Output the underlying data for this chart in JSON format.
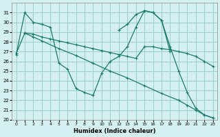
{
  "background_color": "#d4f0f0",
  "grid_color": "#a0d0d0",
  "line_color": "#1a7a6a",
  "xlabel": "Humidex (Indice chaleur)",
  "xlim": [
    -0.5,
    23.5
  ],
  "ylim": [
    20,
    32
  ],
  "yticks": [
    20,
    21,
    22,
    23,
    24,
    25,
    26,
    27,
    28,
    29,
    30,
    31
  ],
  "xticks": [
    0,
    1,
    2,
    3,
    4,
    5,
    6,
    7,
    8,
    9,
    10,
    11,
    12,
    13,
    14,
    15,
    16,
    17,
    18,
    19,
    20,
    21,
    22,
    23
  ],
  "lines": [
    {
      "x": [
        0,
        1,
        2,
        3,
        4,
        5,
        6,
        7,
        8,
        9,
        10,
        11,
        12,
        13,
        14,
        15,
        16,
        17,
        18,
        19,
        20,
        21,
        22,
        23
      ],
      "y": [
        26.7,
        31.0,
        30.0,
        29.8,
        29.5,
        25.8,
        25.2,
        23.2,
        22.8,
        22.5,
        24.8,
        26.0,
        26.5,
        27.5,
        29.5,
        31.2,
        31.0,
        30.2,
        27.5,
        25.0,
        22.8,
        21.2,
        20.5,
        20.2
      ]
    },
    {
      "x": [
        0,
        1,
        2,
        3,
        4,
        5,
        6,
        7,
        8,
        9,
        10,
        11,
        12,
        13,
        14,
        15,
        16,
        17,
        18,
        19,
        20,
        21,
        22,
        23
      ],
      "y": [
        26.8,
        28.9,
        28.8,
        28.5,
        28.3,
        28.1,
        27.9,
        27.7,
        27.5,
        27.3,
        27.1,
        26.9,
        26.7,
        26.5,
        26.3,
        27.5,
        27.5,
        27.3,
        27.2,
        27.0,
        26.8,
        26.5,
        26.0,
        25.5
      ]
    },
    {
      "x": [
        1,
        2,
        3,
        5,
        7,
        9,
        11,
        13,
        15,
        17,
        19,
        20,
        21,
        22,
        23
      ],
      "y": [
        28.9,
        28.5,
        28.1,
        27.3,
        26.6,
        25.8,
        25.0,
        24.3,
        23.5,
        22.7,
        22.0,
        21.5,
        21.0,
        20.5,
        20.2
      ]
    },
    {
      "x": [
        12,
        13,
        14,
        15,
        16,
        17,
        18
      ],
      "y": [
        29.2,
        29.8,
        30.8,
        31.2,
        31.0,
        30.2,
        27.0
      ]
    }
  ]
}
